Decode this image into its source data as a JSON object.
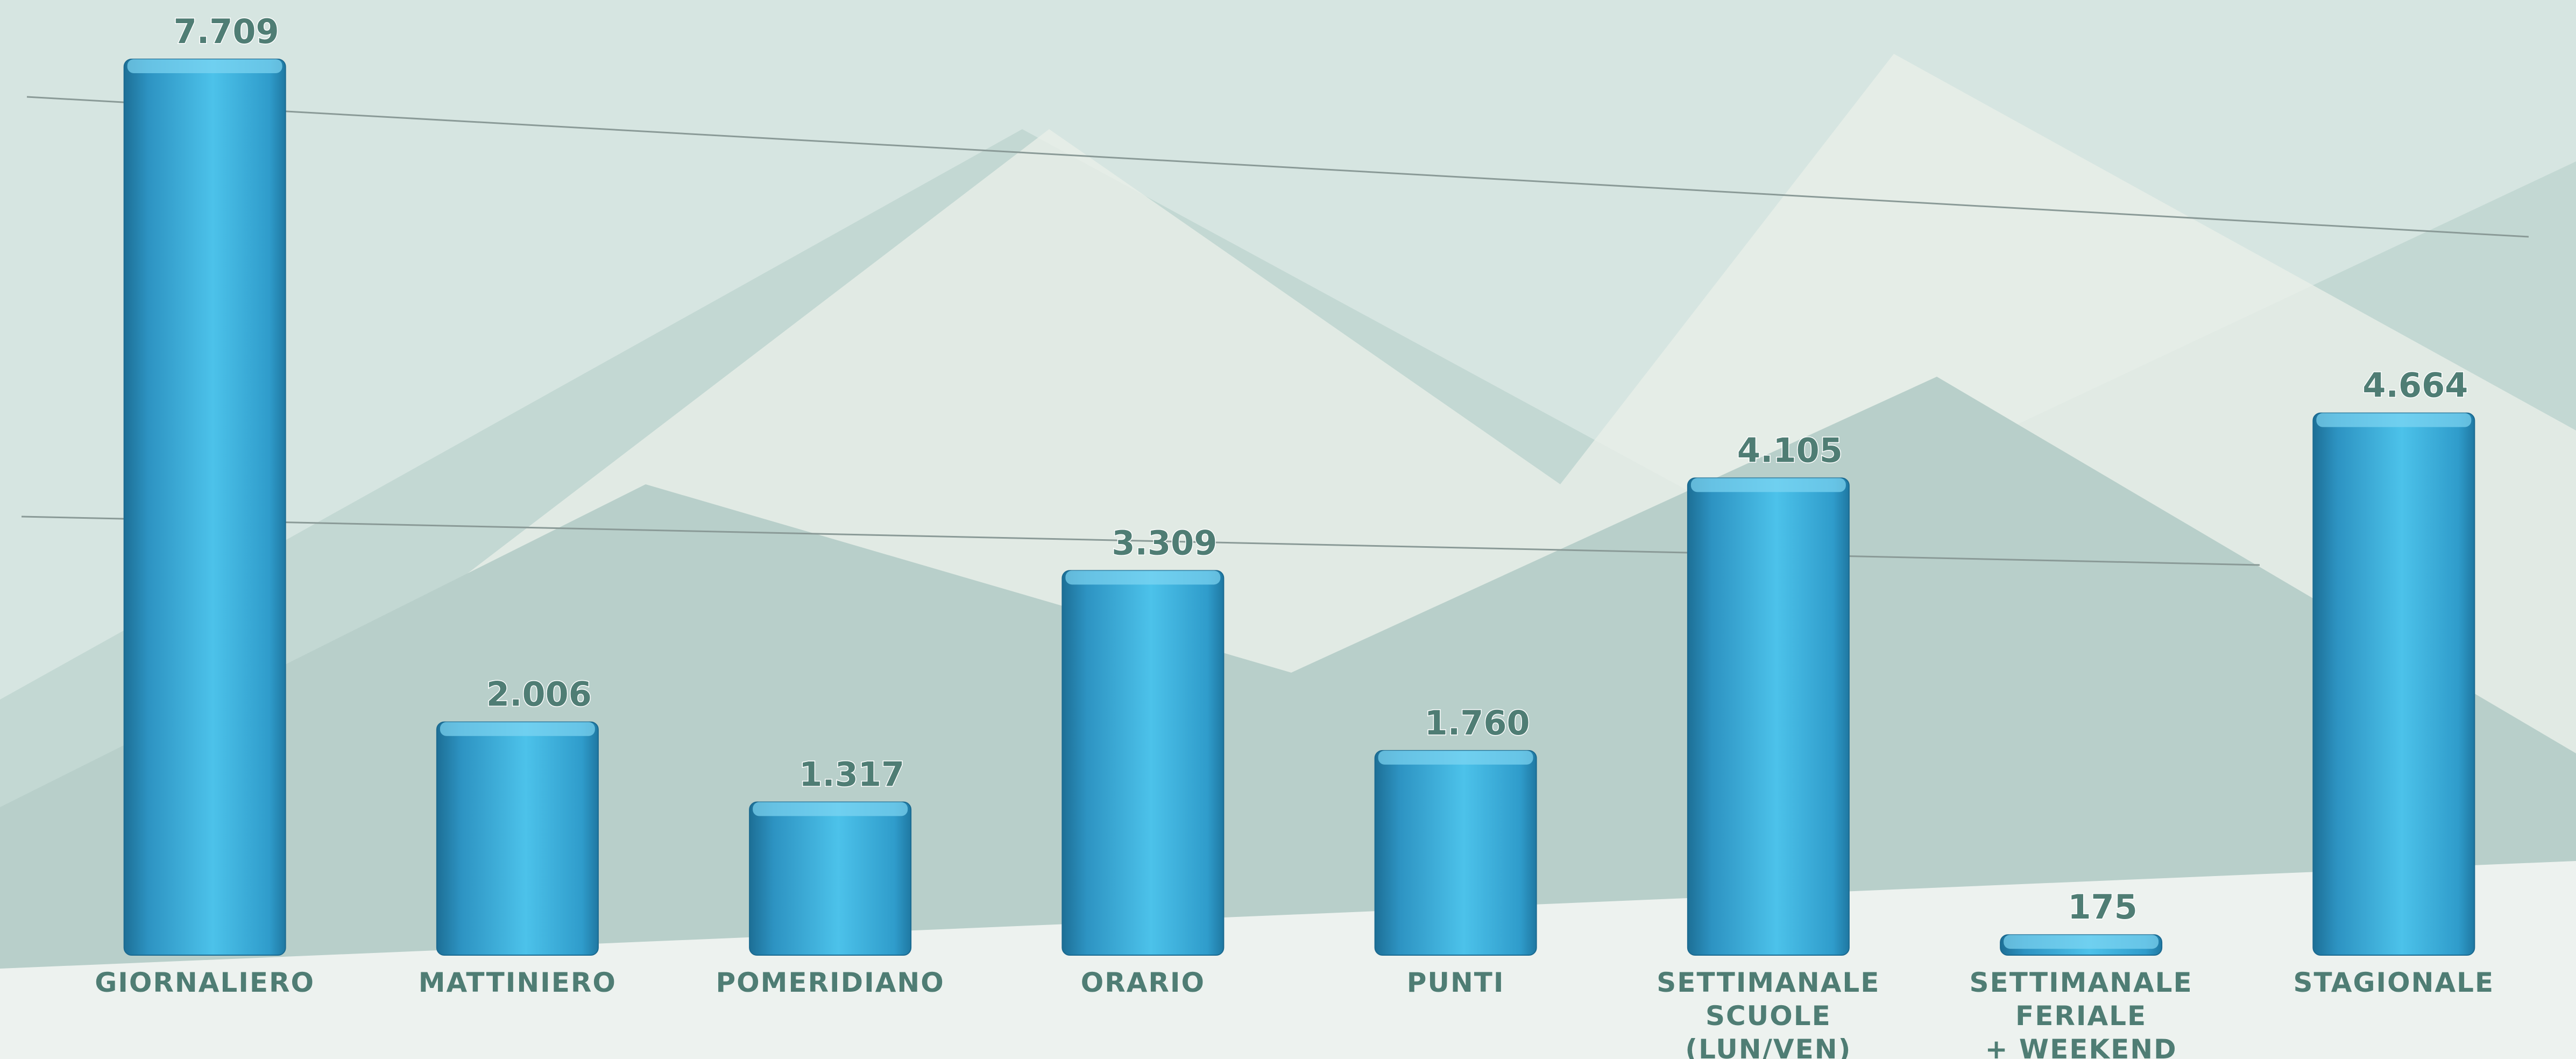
{
  "chart_data": {
    "type": "bar",
    "categories": [
      "GIORNALIERO",
      "MATTINIERO",
      "POMERIDIANO",
      "ORARIO",
      "PUNTI",
      "SETTIMANALE\nSCUOLE\n(LUN/VEN)",
      "SETTIMANALE\nFERIALE\n+ WEEKEND",
      "STAGIONALE"
    ],
    "values": [
      7709,
      2006,
      1317,
      3309,
      1760,
      4105,
      175,
      4664
    ],
    "value_labels": [
      "7.709",
      "2.006",
      "1.317",
      "3.309",
      "1.760",
      "4.105",
      "175",
      "4.664"
    ],
    "color": "#3aa9d6"
  }
}
